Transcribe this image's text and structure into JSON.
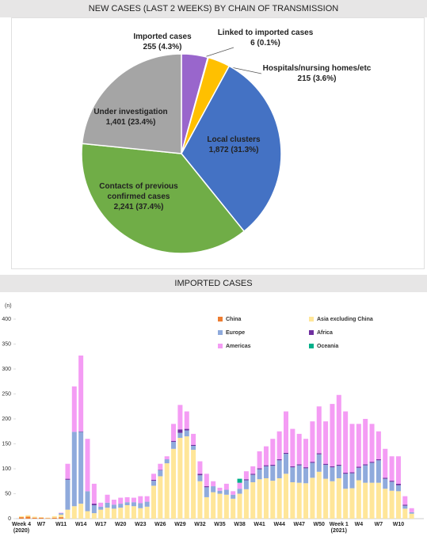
{
  "chart_data": [
    {
      "type": "pie",
      "title": "NEW CASES (LAST 2 WEEKS) BY CHAIN OF TRANSMISSION",
      "categories": [
        "Imported cases",
        "Linked to imported cases",
        "Hospitals/nursing homes/etc",
        "Local clusters",
        "Contacts of previous confirmed cases",
        "Under investigation"
      ],
      "values": [
        255,
        6,
        215,
        1872,
        2241,
        1401
      ],
      "value_labels": [
        "255 (4.3%)",
        "6 (0.1%)",
        "215 (3.6%)",
        "1,872 (31.3%)",
        "2,241 (37.4%)",
        "1,401 (23.4%)"
      ],
      "colors": [
        "#9966cc",
        "#ed7d31",
        "#ffc000",
        "#4472c4",
        "#70ad47",
        "#a5a5a5"
      ]
    },
    {
      "type": "stacked_bar",
      "title": "IMPORTED CASES",
      "y_unit": "(n)",
      "categories": [
        "Week 4 (2020)",
        null,
        null,
        "W7",
        null,
        null,
        "W11",
        null,
        null,
        "W14",
        null,
        null,
        "W17",
        null,
        null,
        "W20",
        null,
        null,
        "W23",
        null,
        null,
        "W26",
        null,
        null,
        "W29",
        null,
        null,
        "W32",
        null,
        null,
        "W35",
        null,
        null,
        "W38",
        null,
        null,
        "W41",
        null,
        null,
        "W44",
        null,
        null,
        "W47",
        null,
        null,
        "W50",
        null,
        null,
        "Week 1 (2021)",
        null,
        null,
        "W4",
        null,
        null,
        "W7",
        null,
        null,
        "W10",
        null,
        null
      ],
      "ylim": [
        0,
        400
      ],
      "yticks": [
        0,
        50,
        100,
        150,
        200,
        250,
        300,
        350,
        400
      ],
      "series": [
        {
          "name": "China",
          "color": "#ed7d31",
          "values": [
            3,
            4,
            2,
            2,
            1,
            2,
            3,
            0,
            0,
            0,
            0,
            0,
            0,
            0,
            0,
            0,
            0,
            0,
            0,
            0,
            0,
            0,
            0,
            0,
            0,
            0,
            0,
            0,
            0,
            0,
            0,
            0,
            0,
            0,
            0,
            0,
            0,
            0,
            0,
            0,
            0,
            0,
            0,
            0,
            0,
            0,
            0,
            0,
            0,
            0,
            0,
            0,
            0,
            0,
            0,
            0,
            0,
            0,
            0,
            0
          ]
        },
        {
          "name": "Asia excluding China",
          "color": "#ffe699",
          "values": [
            2,
            3,
            2,
            1,
            1,
            3,
            5,
            18,
            25,
            30,
            15,
            11,
            18,
            22,
            20,
            22,
            27,
            25,
            21,
            24,
            66,
            85,
            111,
            140,
            162,
            165,
            138,
            75,
            43,
            53,
            50,
            48,
            40,
            50,
            59,
            73,
            79,
            81,
            76,
            81,
            90,
            73,
            72,
            71,
            82,
            94,
            80,
            75,
            81,
            60,
            61,
            77,
            72,
            72,
            72,
            60,
            56,
            55,
            20,
            10
          ]
        },
        {
          "name": "Europe",
          "color": "#8faadc",
          "values": [
            0,
            0,
            0,
            0,
            0,
            0,
            3,
            60,
            149,
            144,
            40,
            16,
            6,
            10,
            8,
            8,
            6,
            8,
            10,
            10,
            10,
            12,
            8,
            14,
            10,
            12,
            8,
            12,
            20,
            12,
            6,
            10,
            8,
            10,
            18,
            15,
            20,
            24,
            30,
            36,
            40,
            30,
            35,
            30,
            30,
            35,
            28,
            28,
            25,
            30,
            30,
            25,
            35,
            40,
            45,
            20,
            18,
            12,
            6,
            3
          ]
        },
        {
          "name": "Africa",
          "color": "#7030a0",
          "values": [
            0,
            0,
            0,
            0,
            0,
            0,
            0,
            2,
            0,
            1,
            0,
            3,
            0,
            0,
            0,
            0,
            0,
            0,
            0,
            0,
            2,
            1,
            0,
            2,
            7,
            3,
            2,
            3,
            2,
            0,
            0,
            0,
            0,
            0,
            2,
            2,
            2,
            2,
            2,
            2,
            2,
            2,
            2,
            2,
            2,
            2,
            2,
            2,
            2,
            2,
            2,
            2,
            2,
            2,
            2,
            2,
            2,
            3,
            2,
            0
          ]
        },
        {
          "name": "Americas",
          "color": "#f49cf4",
          "values": [
            0,
            0,
            0,
            0,
            0,
            0,
            1,
            30,
            91,
            152,
            105,
            40,
            8,
            16,
            10,
            12,
            10,
            9,
            14,
            11,
            12,
            12,
            6,
            34,
            49,
            35,
            22,
            25,
            25,
            10,
            6,
            12,
            7,
            12,
            16,
            15,
            34,
            38,
            52,
            56,
            83,
            75,
            61,
            57,
            81,
            94,
            85,
            125,
            140,
            123,
            97,
            86,
            91,
            76,
            56,
            58,
            49,
            55,
            17,
            8
          ]
        },
        {
          "name": "Oceania",
          "color": "#00b08a",
          "values": [
            0,
            0,
            0,
            0,
            0,
            0,
            0,
            0,
            0,
            0,
            0,
            0,
            0,
            0,
            0,
            0,
            0,
            0,
            0,
            0,
            0,
            0,
            0,
            0,
            0,
            0,
            0,
            0,
            0,
            0,
            0,
            0,
            0,
            8,
            0,
            0,
            0,
            0,
            0,
            0,
            0,
            0,
            0,
            0,
            0,
            0,
            0,
            0,
            0,
            0,
            0,
            0,
            0,
            0,
            0,
            0,
            0,
            0,
            0,
            0
          ]
        }
      ]
    }
  ]
}
